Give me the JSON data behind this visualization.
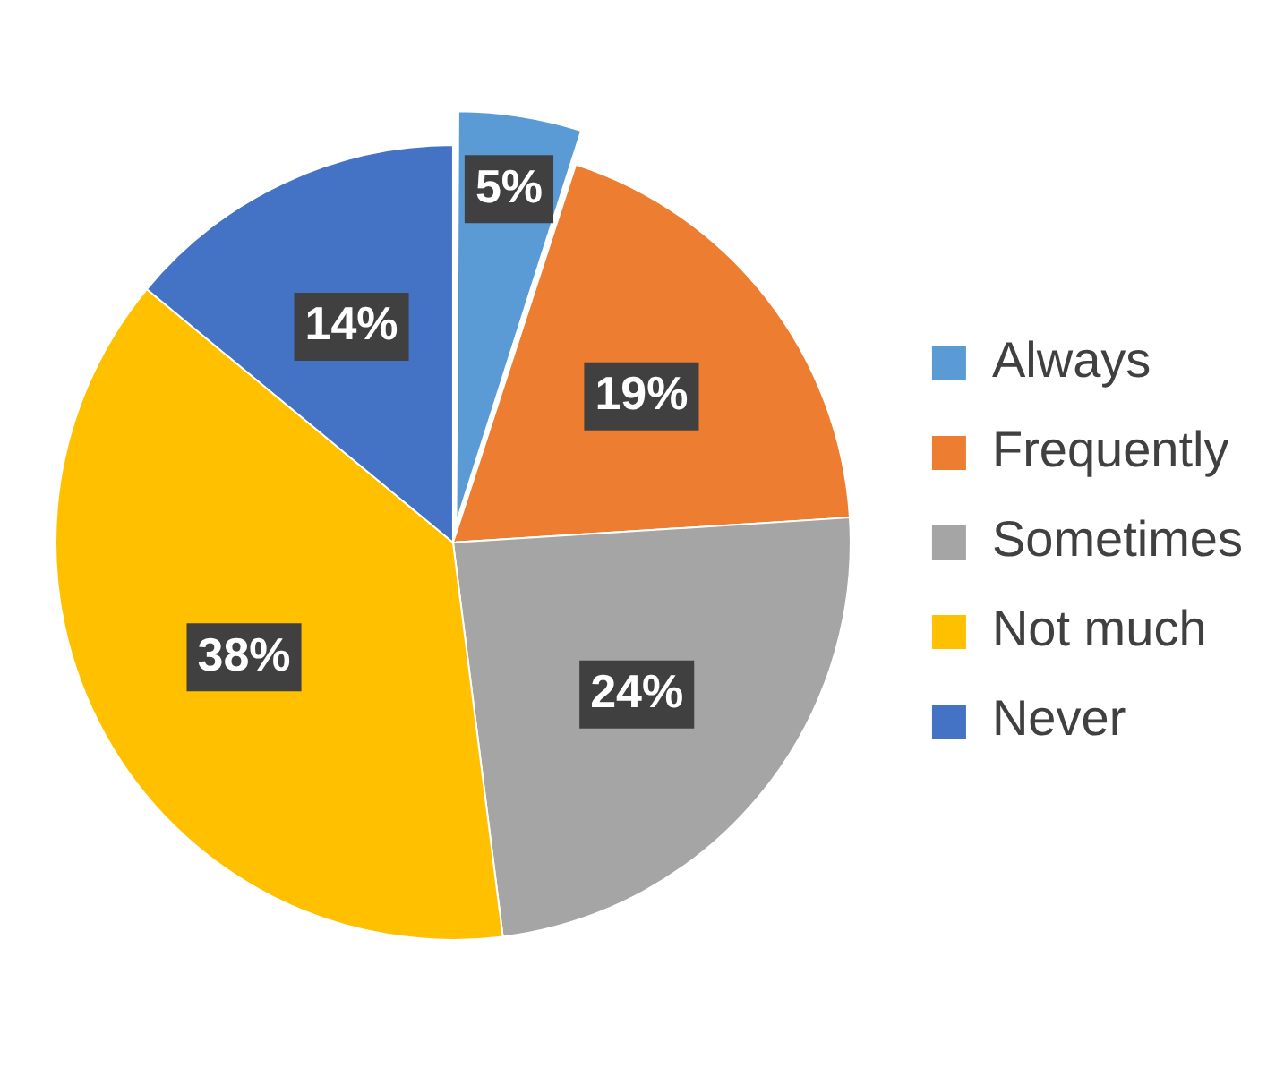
{
  "chart_data": {
    "type": "pie",
    "categories": [
      "Always",
      "Frequently",
      "Sometimes",
      "Not much",
      "Never"
    ],
    "values": [
      5,
      19,
      24,
      38,
      14
    ],
    "value_labels": [
      "5%",
      "19%",
      "24%",
      "38%",
      "14%"
    ],
    "colors": [
      "#5b9bd5",
      "#ed7d31",
      "#a5a5a5",
      "#ffc000",
      "#4472c4"
    ],
    "legend": "right"
  }
}
